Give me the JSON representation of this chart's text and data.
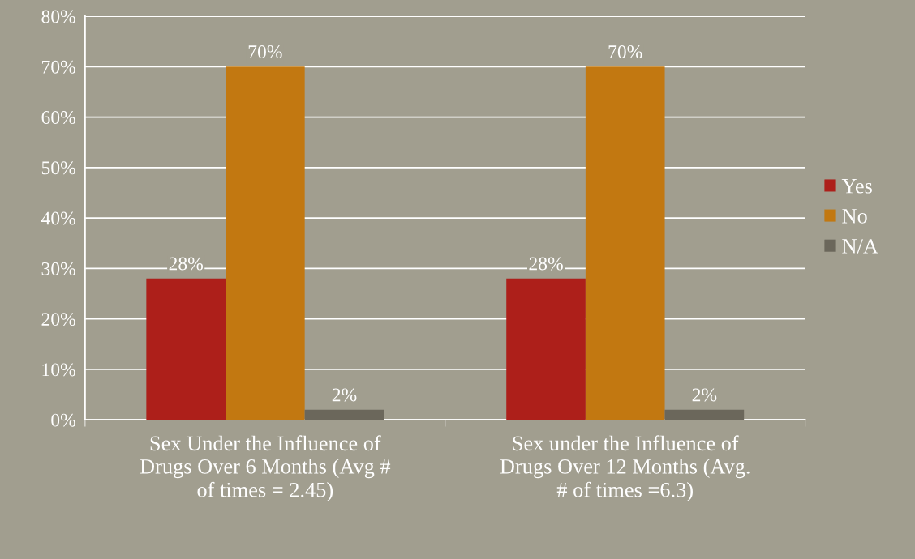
{
  "chart_data": {
    "type": "bar",
    "categories": [
      "Sex Under the Influence of\nDrugs Over 6 Months (Avg #\nof times = 2.45)",
      "Sex under the Influence of\nDrugs Over 12 Months (Avg.\n# of times =6.3)"
    ],
    "series": [
      {
        "name": "Yes",
        "color": "#ad1f1a",
        "values": [
          28,
          28
        ],
        "value_labels": [
          "28%",
          "28%"
        ]
      },
      {
        "name": "No",
        "color": "#c27811",
        "values": [
          70,
          70
        ],
        "value_labels": [
          "70%",
          "70%"
        ]
      },
      {
        "name": "N/A",
        "color": "#6b675b",
        "values": [
          2,
          2
        ],
        "value_labels": [
          "2%",
          "2%"
        ]
      }
    ],
    "ylim": [
      0,
      80
    ],
    "yticks": [
      {
        "value": 0,
        "label": "0%"
      },
      {
        "value": 10,
        "label": "10%"
      },
      {
        "value": 20,
        "label": "20%"
      },
      {
        "value": 30,
        "label": "30%"
      },
      {
        "value": 40,
        "label": "40%"
      },
      {
        "value": 50,
        "label": "50%"
      },
      {
        "value": 60,
        "label": "60%"
      },
      {
        "value": 70,
        "label": "70%"
      },
      {
        "value": 80,
        "label": "80%"
      }
    ],
    "grid": "y",
    "legend": "right"
  }
}
